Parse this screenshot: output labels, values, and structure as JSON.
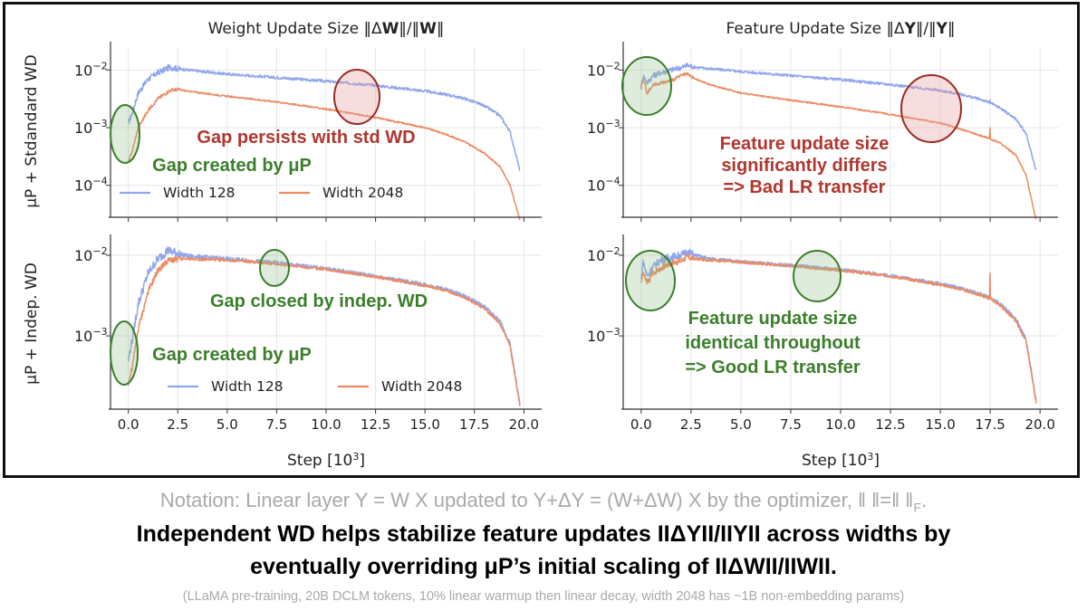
{
  "chart_data": [
    {
      "type": "line",
      "row_label": "μP + Stdandard WD",
      "column_title_parts": [
        "Weight Update Size ‖Δ",
        "W",
        "‖/‖",
        "W",
        "‖"
      ],
      "yscale": "log",
      "ylim": [
        3e-05,
        0.025
      ],
      "yticks": [
        {
          "value": 0.01,
          "base": "10",
          "exp": "−2"
        },
        {
          "value": 0.001,
          "base": "10",
          "exp": "−3"
        },
        {
          "value": 0.0001,
          "base": "10",
          "exp": "−4"
        }
      ],
      "xlim": [
        -0.9,
        20.9
      ],
      "xticks": [
        "0.0",
        "2.5",
        "5.0",
        "7.5",
        "10.0",
        "12.5",
        "15.0",
        "17.5",
        "20.0"
      ],
      "xlabel": "",
      "grid": true,
      "legend": "lower",
      "series": [
        {
          "name": "Width 128",
          "color": "#8fa6ec",
          "noise": 0.055,
          "x": [
            0,
            0.2,
            0.5,
            1.0,
            1.5,
            2.1,
            2.5,
            3.0,
            5.0,
            7.5,
            10.0,
            12.5,
            15.0,
            16.0,
            17.0,
            18.0,
            18.8,
            19.3,
            19.8
          ],
          "y": [
            0.0012,
            0.0018,
            0.004,
            0.007,
            0.009,
            0.0112,
            0.0105,
            0.01,
            0.0085,
            0.0074,
            0.0064,
            0.0054,
            0.0043,
            0.0038,
            0.0032,
            0.0024,
            0.0016,
            0.00085,
            0.00018
          ]
        },
        {
          "name": "Width 2048",
          "color": "#ec8a62",
          "noise": 0.03,
          "x": [
            0,
            0.2,
            0.5,
            1.0,
            1.5,
            2.1,
            2.5,
            3.0,
            5.0,
            7.5,
            10.0,
            12.5,
            15.0,
            16.0,
            17.0,
            18.0,
            18.8,
            19.3,
            19.8
          ],
          "y": [
            0.00025,
            0.0004,
            0.001,
            0.002,
            0.0032,
            0.0044,
            0.0046,
            0.0043,
            0.0035,
            0.0028,
            0.0021,
            0.0015,
            0.001,
            0.00078,
            0.00057,
            0.00036,
            0.00021,
            0.0001,
            2.5e-05
          ]
        }
      ],
      "annotations": [
        {
          "text": "Gap persists with std WD",
          "color": "#b0362e",
          "size": 20
        },
        {
          "text": "Gap created by μP",
          "color": "#3a7f2a",
          "size": 20
        }
      ]
    },
    {
      "type": "line",
      "column_title_parts": [
        "Feature Update Size ‖Δ",
        "Y",
        "‖/‖",
        "Y",
        "‖"
      ],
      "yscale": "log",
      "ylim": [
        3e-05,
        0.025
      ],
      "yticks": [
        {
          "value": 0.01,
          "base": "10",
          "exp": "−2"
        },
        {
          "value": 0.001,
          "base": "10",
          "exp": "−3"
        },
        {
          "value": 0.0001,
          "base": "10",
          "exp": "−4"
        }
      ],
      "xlim": [
        -0.9,
        20.9
      ],
      "xticks": [
        "0.0",
        "2.5",
        "5.0",
        "7.5",
        "10.0",
        "12.5",
        "15.0",
        "17.5",
        "20.0"
      ],
      "xlabel": "",
      "grid": true,
      "series": [
        {
          "name": "Width 128",
          "color": "#8fa6ec",
          "noise": 0.05,
          "x": [
            0,
            0.1,
            0.3,
            0.6,
            1.0,
            1.5,
            2.0,
            2.3,
            2.7,
            3.5,
            5.0,
            7.5,
            10.0,
            12.5,
            15.0,
            16.0,
            17.0,
            17.5,
            18.0,
            18.8,
            19.3,
            19.8
          ],
          "y": [
            0.005,
            0.008,
            0.006,
            0.008,
            0.009,
            0.01,
            0.011,
            0.012,
            0.0112,
            0.0105,
            0.0094,
            0.008,
            0.0068,
            0.0056,
            0.0044,
            0.0038,
            0.0031,
            0.0027,
            0.0022,
            0.0014,
            0.00078,
            0.00018
          ],
          "spike": {
            "x": 17.5,
            "peak": 0.003
          }
        },
        {
          "name": "Width 2048",
          "color": "#ec8a62",
          "noise": 0.03,
          "x": [
            0,
            0.1,
            0.3,
            0.6,
            1.0,
            1.5,
            2.0,
            2.3,
            2.7,
            3.5,
            5.0,
            7.5,
            10.0,
            12.5,
            15.0,
            16.0,
            17.0,
            17.5,
            18.0,
            18.8,
            19.3,
            19.8
          ],
          "y": [
            0.005,
            0.007,
            0.004,
            0.0055,
            0.006,
            0.0065,
            0.008,
            0.0085,
            0.007,
            0.0055,
            0.004,
            0.003,
            0.0023,
            0.0017,
            0.0012,
            0.00095,
            0.00073,
            0.00064,
            0.00054,
            0.00033,
            0.00015,
            2.5e-05
          ],
          "spike": {
            "x": 17.5,
            "peak": 0.001
          }
        }
      ],
      "annotations": [
        {
          "lines": [
            "Feature update size",
            "significantly differs",
            "=> Bad LR transfer"
          ],
          "color": "#b0362e",
          "size": 20
        }
      ]
    },
    {
      "type": "line",
      "row_label": "μP + Indep. WD",
      "yscale": "log",
      "ylim": [
        0.00013,
        0.0155
      ],
      "yticks": [
        {
          "value": 0.01,
          "base": "10",
          "exp": "−2"
        },
        {
          "value": 0.001,
          "base": "10",
          "exp": "−3"
        }
      ],
      "xlim": [
        -0.9,
        20.9
      ],
      "xticks": [
        "0.0",
        "2.5",
        "5.0",
        "7.5",
        "10.0",
        "12.5",
        "15.0",
        "17.5",
        "20.0"
      ],
      "xlabel_parts": [
        "Step [10",
        "3",
        "]"
      ],
      "grid": true,
      "legend": "lower",
      "series": [
        {
          "name": "Width 128",
          "color": "#8fa6ec",
          "noise": 0.06,
          "x": [
            0,
            0.2,
            0.5,
            1.0,
            1.5,
            2.0,
            2.5,
            3.0,
            5.0,
            7.5,
            10.0,
            12.5,
            15.0,
            16.0,
            17.0,
            18.0,
            18.8,
            19.3,
            19.8
          ],
          "y": [
            0.0005,
            0.0009,
            0.0025,
            0.006,
            0.009,
            0.0115,
            0.0105,
            0.0098,
            0.009,
            0.008,
            0.0068,
            0.0055,
            0.0043,
            0.0038,
            0.0031,
            0.0023,
            0.0015,
            0.0008,
            0.00014
          ]
        },
        {
          "name": "Width 2048",
          "color": "#ec8a62",
          "noise": 0.04,
          "x": [
            0,
            0.2,
            0.5,
            1.0,
            1.5,
            2.0,
            2.5,
            3.0,
            5.0,
            7.5,
            10.0,
            12.5,
            15.0,
            16.0,
            17.0,
            18.0,
            18.8,
            19.3,
            19.8
          ],
          "y": [
            0.00025,
            0.0004,
            0.0012,
            0.0035,
            0.0065,
            0.0085,
            0.009,
            0.009,
            0.0087,
            0.0078,
            0.0067,
            0.0054,
            0.0042,
            0.0037,
            0.003,
            0.0022,
            0.0014,
            0.00075,
            0.00014
          ]
        }
      ],
      "annotations": [
        {
          "text": "Gap closed by indep. WD",
          "color": "#3a7f2a",
          "size": 20
        },
        {
          "text": "Gap created by μP",
          "color": "#3a7f2a",
          "size": 20
        }
      ]
    },
    {
      "type": "line",
      "yscale": "log",
      "ylim": [
        0.00013,
        0.0155
      ],
      "yticks": [
        {
          "value": 0.01,
          "base": "10",
          "exp": "−2"
        },
        {
          "value": 0.001,
          "base": "10",
          "exp": "−3"
        }
      ],
      "xlim": [
        -0.9,
        20.9
      ],
      "xticks": [
        "0.0",
        "2.5",
        "5.0",
        "7.5",
        "10.0",
        "12.5",
        "15.0",
        "17.5",
        "20.0"
      ],
      "xlabel_parts": [
        "Step [10",
        "3",
        "]"
      ],
      "grid": true,
      "series": [
        {
          "name": "Width 128",
          "color": "#8fa6ec",
          "noise": 0.05,
          "x": [
            0,
            0.1,
            0.3,
            0.6,
            1.0,
            1.5,
            2.0,
            2.3,
            2.7,
            3.5,
            5.0,
            7.5,
            10.0,
            12.5,
            15.0,
            16.0,
            17.0,
            17.5,
            18.0,
            18.8,
            19.3,
            19.8
          ],
          "y": [
            0.005,
            0.0085,
            0.0055,
            0.0072,
            0.0088,
            0.0095,
            0.01,
            0.011,
            0.01,
            0.009,
            0.0083,
            0.0075,
            0.0066,
            0.0056,
            0.0044,
            0.0039,
            0.0033,
            0.003,
            0.0025,
            0.0016,
            0.0009,
            0.00016
          ]
        },
        {
          "name": "Width 2048",
          "color": "#ec8a62",
          "noise": 0.04,
          "x": [
            0,
            0.1,
            0.3,
            0.6,
            1.0,
            1.5,
            2.0,
            2.3,
            2.7,
            3.5,
            5.0,
            7.5,
            10.0,
            12.5,
            15.0,
            16.0,
            17.0,
            17.5,
            18.0,
            18.8,
            19.3,
            19.8
          ],
          "y": [
            0.0045,
            0.006,
            0.0045,
            0.006,
            0.007,
            0.008,
            0.0085,
            0.0095,
            0.009,
            0.0087,
            0.0082,
            0.0074,
            0.0065,
            0.0055,
            0.0043,
            0.0038,
            0.0032,
            0.0029,
            0.0024,
            0.0015,
            0.00085,
            0.00015
          ],
          "spike": {
            "x": 17.5,
            "peak": 0.006
          }
        }
      ],
      "annotations": [
        {
          "lines": [
            "Feature update size",
            "identical throughout",
            "=> Good LR transfer"
          ],
          "color": "#3a7f2a",
          "size": 20
        }
      ]
    }
  ],
  "notation": {
    "text": "Notation: Linear layer Y = W X updated to Y+ΔY = (W+ΔW) X by the optimizer, ‖ ‖=‖ ‖",
    "subscript": "F",
    "end": "."
  },
  "headline": {
    "line1": "Independent WD helps stabilize feature updates IIΔYII/IIYII across widths by",
    "line2": "eventually overriding μP’s initial scaling of IIΔWII/IIWII."
  },
  "footnote": "(LLaMA pre-training, 20B DCLM tokens, 10% linear warmup then linear decay, width 2048 has ~1B non-embedding params)"
}
